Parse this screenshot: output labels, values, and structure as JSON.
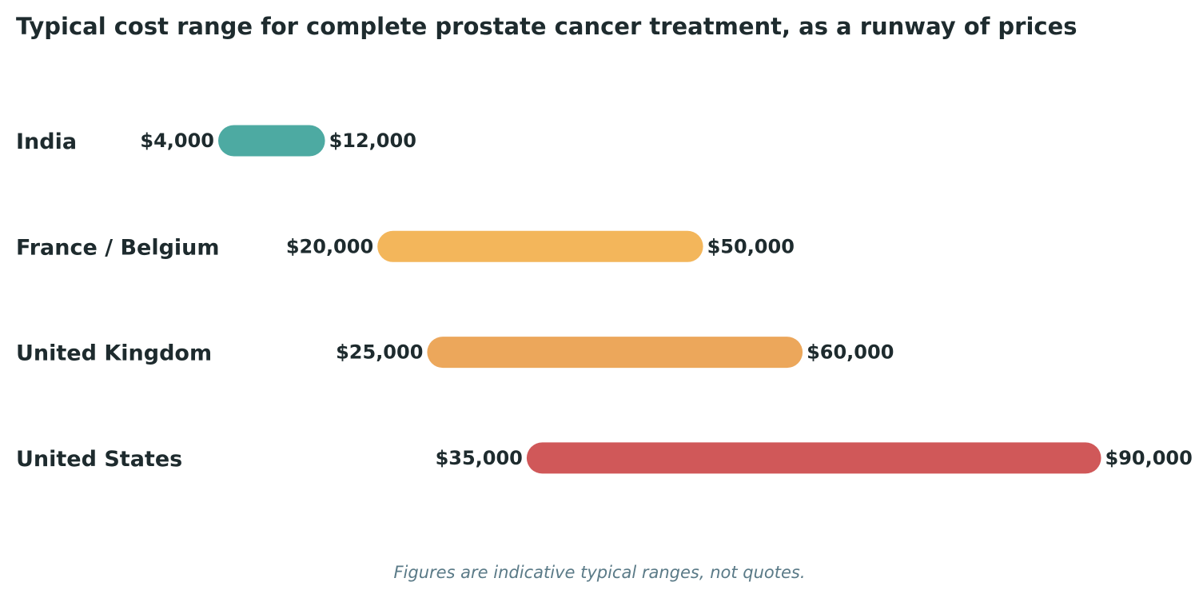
{
  "chart_data": {
    "type": "bar",
    "orientation": "horizontal-range",
    "title": "Typical cost range for complete prostate cancer treatment, as a runway of prices",
    "footnote": "Figures are indicative typical ranges, not quotes.",
    "categories": [
      "India",
      "France / Belgium",
      "United Kingdom",
      "United States"
    ],
    "ranges": [
      {
        "name": "India",
        "low": 4000,
        "high": 12000,
        "low_label": "$4,000",
        "high_label": "$12,000",
        "color": "#4daaa2"
      },
      {
        "name": "France / Belgium",
        "low": 20000,
        "high": 50000,
        "low_label": "$20,000",
        "high_label": "$50,000",
        "color": "#f3b65b"
      },
      {
        "name": "United Kingdom",
        "low": 25000,
        "high": 60000,
        "low_label": "$25,000",
        "high_label": "$60,000",
        "color": "#eca75b"
      },
      {
        "name": "United States",
        "low": 35000,
        "high": 90000,
        "low_label": "$35,000",
        "high_label": "$90,000",
        "color": "#d05859"
      }
    ],
    "xlim": [
      0,
      90000
    ],
    "xlabel": "",
    "ylabel": "",
    "grid": false,
    "legend": "none"
  },
  "colors": {
    "text": "#1e2b2e",
    "footnote": "#5a7a87",
    "background": "#ffffff"
  }
}
